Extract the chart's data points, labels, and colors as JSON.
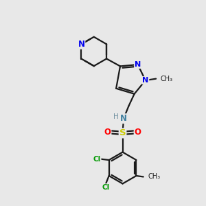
{
  "bg_color": "#e8e8e8",
  "bond_color": "#1a1a1a",
  "bond_width": 1.6,
  "atom_colors": {
    "N_blue": "#0000ee",
    "N_teal": "#4080a0",
    "O_red": "#ff0000",
    "S_yellow": "#cccc00",
    "Cl_green": "#009900",
    "C_black": "#1a1a1a",
    "H_gray": "#7090a0"
  },
  "figsize": [
    3.0,
    3.0
  ],
  "dpi": 100,
  "xlim": [
    0,
    10
  ],
  "ylim": [
    0,
    10
  ]
}
